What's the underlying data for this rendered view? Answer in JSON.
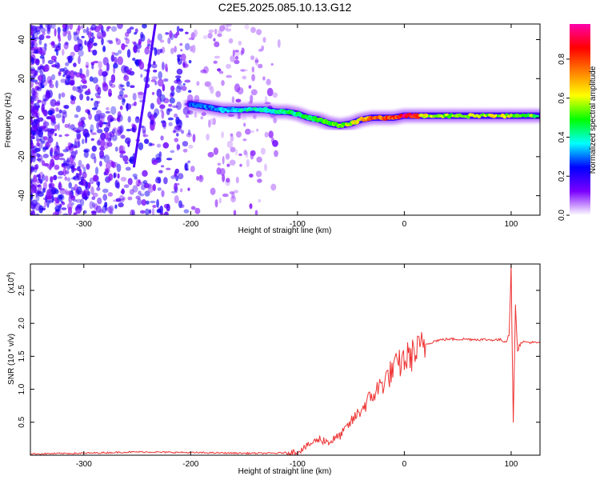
{
  "figure": {
    "title": "C2E5.2025.085.10.13.G12"
  },
  "chart_data": [
    {
      "type": "heatmap",
      "xlabel": "Height of straight line (km)",
      "ylabel": "Frequency (Hz)",
      "xlim": [
        -350,
        127
      ],
      "ylim": [
        -50,
        48
      ],
      "xticks": [
        -300,
        -200,
        -100,
        0,
        100
      ],
      "yticks": [
        -40,
        -20,
        0,
        20,
        40
      ],
      "colorbar": {
        "label": "Normalized spectral amplitude",
        "range": [
          0,
          0.98
        ],
        "ticks": [
          "0.0",
          "0.2",
          "0.4",
          "0.6",
          "0.8"
        ],
        "tick_values": [
          0,
          0.2,
          0.4,
          0.6,
          0.8
        ],
        "colors": [
          "#ffffff",
          "#7b00ff",
          "#0000ff",
          "#00ffff",
          "#00ff00",
          "#ffff00",
          "#ff7f00",
          "#ff0000",
          "#ff00aa"
        ]
      },
      "ridge": {
        "x": [
          -200,
          -190,
          -180,
          -170,
          -160,
          -150,
          -140,
          -130,
          -120,
          -110,
          -100,
          -90,
          -80,
          -70,
          -60,
          -50,
          -40,
          -30,
          -20,
          -10,
          0,
          10,
          20,
          40,
          60,
          80,
          100,
          127
        ],
        "y": [
          7,
          6,
          5,
          4,
          4,
          4,
          4,
          4,
          3,
          3,
          2,
          0,
          -1,
          -3,
          -4,
          -3,
          -1,
          0,
          0,
          0,
          1,
          1,
          1,
          1,
          1,
          1,
          1,
          1
        ],
        "amplitude": [
          0.3,
          0.3,
          0.3,
          0.35,
          0.35,
          0.4,
          0.4,
          0.4,
          0.4,
          0.45,
          0.45,
          0.5,
          0.5,
          0.5,
          0.55,
          0.6,
          0.65,
          0.75,
          0.8,
          0.8,
          0.9,
          0.85,
          0.6,
          0.55,
          0.55,
          0.6,
          0.6,
          0.5
        ]
      },
      "streak": {
        "x": [
          -253,
          -233
        ],
        "y": [
          -25,
          48
        ]
      }
    },
    {
      "type": "line",
      "xlabel": "Height of straight line (km)",
      "ylabel": "SNR (10 * v/v)",
      "multiplier": "(x10",
      "multiplier_exp": "4",
      "multiplier_close": ")",
      "xlim": [
        -350,
        127
      ],
      "ylim": [
        0,
        2.9
      ],
      "xticks": [
        -300,
        -200,
        -100,
        0,
        100
      ],
      "yticks": [
        0.5,
        1.0,
        1.5,
        2.0,
        2.5
      ],
      "ytick_labels": [
        "0.5",
        "1.0",
        "1.5",
        "2.0",
        "2.5"
      ],
      "series": [
        {
          "color": "#ee3333",
          "x": [
            -350,
            -300,
            -250,
            -200,
            -150,
            -120,
            -100,
            -90,
            -80,
            -70,
            -60,
            -50,
            -40,
            -30,
            -20,
            -10,
            0,
            10,
            20,
            30,
            40,
            60,
            80,
            90,
            95,
            98,
            100,
            102,
            104,
            106,
            110,
            127
          ],
          "y": [
            0.02,
            0.03,
            0.05,
            0.04,
            0.03,
            0.03,
            0.05,
            0.15,
            0.25,
            0.2,
            0.3,
            0.5,
            0.7,
            0.9,
            1.1,
            1.3,
            1.45,
            1.55,
            1.68,
            1.74,
            1.76,
            1.76,
            1.75,
            1.75,
            1.72,
            1.85,
            2.85,
            0.45,
            2.3,
            1.6,
            1.72,
            1.7
          ]
        }
      ]
    }
  ]
}
